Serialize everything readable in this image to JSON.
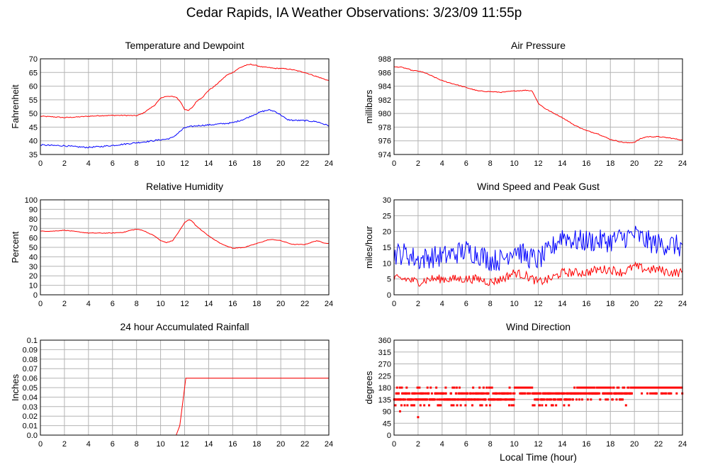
{
  "title": "Cedar Rapids, IA Weather Observations: 3/23/09 11:55p",
  "x_axis_label": "Local Time (hour)",
  "chart_data": [
    {
      "id": "temp",
      "type": "line",
      "title": "Temperature and Dewpoint",
      "xlabel": "",
      "ylabel": "Fahrenheit",
      "xlim": [
        0,
        24
      ],
      "xticks": [
        0,
        2,
        4,
        6,
        8,
        10,
        12,
        14,
        16,
        18,
        20,
        22,
        24
      ],
      "ylim": [
        35,
        70
      ],
      "yticks": [
        35,
        40,
        45,
        50,
        55,
        60,
        65,
        70
      ],
      "grid": true,
      "series": [
        {
          "color": "#ff0000",
          "noise": 0.15,
          "x": [
            0,
            1,
            2,
            3,
            4,
            5,
            6,
            7,
            8,
            8.5,
            9,
            9.5,
            10,
            10.3,
            10.7,
            11,
            11.3,
            11.7,
            12,
            12.3,
            12.7,
            13,
            13.5,
            14,
            14.5,
            15,
            15.5,
            16,
            16.5,
            17,
            17.5,
            18,
            18.5,
            19,
            19.5,
            20,
            20.5,
            21,
            22,
            23,
            24
          ],
          "y": [
            49,
            48.8,
            48.5,
            48.7,
            49,
            49.2,
            49.3,
            49.3,
            49.2,
            50,
            51.5,
            53,
            55.5,
            56.2,
            56.2,
            56.2,
            56,
            54,
            51.5,
            51,
            52.5,
            54.5,
            56,
            58.5,
            60,
            62,
            64,
            65,
            66.5,
            67.5,
            68,
            67.5,
            67,
            66.8,
            66.5,
            66.5,
            66.3,
            66,
            65,
            63.5,
            62
          ]
        },
        {
          "color": "#0000ff",
          "noise": 0.25,
          "x": [
            0,
            1,
            2,
            3,
            4,
            5,
            6,
            7,
            8,
            9,
            10,
            10.5,
            11,
            11.5,
            12,
            12.5,
            13,
            14,
            15,
            16,
            17,
            17.5,
            18,
            18.5,
            19,
            19.5,
            20,
            20.5,
            21,
            22,
            23,
            24
          ],
          "y": [
            38.5,
            38.3,
            38.2,
            37.8,
            37.6,
            37.9,
            38.3,
            38.8,
            39.3,
            39.8,
            40.4,
            40.6,
            41.2,
            43,
            44.8,
            45.2,
            45.5,
            45.8,
            46.2,
            46.6,
            48,
            49,
            50,
            50.8,
            51.3,
            50.8,
            49.5,
            47.8,
            47.5,
            47.4,
            47,
            45.5
          ]
        }
      ]
    },
    {
      "id": "pressure",
      "type": "line",
      "title": "Air Pressure",
      "xlabel": "",
      "ylabel": "millibars",
      "xlim": [
        0,
        24
      ],
      "xticks": [
        0,
        2,
        4,
        6,
        8,
        10,
        12,
        14,
        16,
        18,
        20,
        22,
        24
      ],
      "ylim": [
        974,
        988
      ],
      "yticks": [
        974,
        976,
        978,
        980,
        982,
        984,
        986,
        988
      ],
      "grid": true,
      "series": [
        {
          "color": "#ff0000",
          "noise": 0.06,
          "x": [
            0,
            0.5,
            1,
            1.5,
            2,
            2.5,
            3,
            4,
            5,
            6,
            7,
            8,
            9,
            10,
            11,
            11.5,
            12,
            12.5,
            13,
            14,
            15,
            16,
            17,
            18,
            19,
            19.5,
            20,
            20.5,
            21,
            22,
            23,
            24
          ],
          "y": [
            986.8,
            986.8,
            986.6,
            986.3,
            986.2,
            986,
            985.6,
            984.8,
            984.3,
            983.8,
            983.3,
            983.2,
            983.1,
            983.3,
            983.4,
            983.3,
            981.5,
            980.8,
            980.3,
            979.4,
            978.3,
            977.5,
            977,
            976.2,
            975.8,
            975.7,
            975.8,
            976.3,
            976.6,
            976.6,
            976.4,
            976.1
          ]
        }
      ]
    },
    {
      "id": "humidity",
      "type": "line",
      "title": "Relative Humidity",
      "xlabel": "",
      "ylabel": "Percent",
      "xlim": [
        0,
        24
      ],
      "xticks": [
        0,
        2,
        4,
        6,
        8,
        10,
        12,
        14,
        16,
        18,
        20,
        22,
        24
      ],
      "ylim": [
        0,
        100
      ],
      "yticks": [
        0,
        10,
        20,
        30,
        40,
        50,
        60,
        70,
        80,
        90,
        100
      ],
      "grid": true,
      "series": [
        {
          "color": "#ff0000",
          "noise": 0.3,
          "x": [
            0,
            1,
            2,
            3,
            4,
            5,
            6,
            7,
            7.5,
            8,
            8.5,
            9,
            9.5,
            10,
            10.5,
            11,
            11.5,
            12,
            12.3,
            12.6,
            13,
            13.5,
            14,
            15,
            16,
            17,
            18,
            19,
            19.5,
            20,
            20.5,
            21,
            22,
            22.5,
            23,
            23.5,
            24
          ],
          "y": [
            67,
            67,
            68,
            66.5,
            65,
            65,
            65,
            66,
            68,
            69,
            68,
            65,
            62,
            57,
            55,
            57,
            66,
            76,
            79,
            78,
            72,
            67,
            62,
            54,
            49,
            50,
            54,
            58,
            58,
            57,
            55,
            53,
            53,
            55,
            57,
            55,
            54
          ]
        }
      ]
    },
    {
      "id": "wind",
      "type": "line",
      "title": "Wind Speed and Peak Gust",
      "xlabel": "",
      "ylabel": "miles/hour",
      "xlim": [
        0,
        24
      ],
      "xticks": [
        0,
        2,
        4,
        6,
        8,
        10,
        12,
        14,
        16,
        18,
        20,
        22,
        24
      ],
      "ylim": [
        0,
        30
      ],
      "yticks": [
        0,
        5,
        10,
        15,
        20,
        25,
        30
      ],
      "grid": true,
      "series": [
        {
          "color": "#0000ff",
          "noise": 3.6,
          "x": [
            0,
            1,
            2,
            3,
            4,
            5,
            6,
            7,
            8,
            9,
            10,
            11,
            12,
            13,
            14,
            15,
            16,
            17,
            18,
            19,
            20,
            21,
            22,
            23,
            24
          ],
          "y": [
            13,
            13,
            11,
            12,
            12,
            13,
            14,
            13,
            11,
            11,
            15,
            12,
            11,
            14,
            19,
            17,
            17,
            17,
            17,
            18,
            19,
            17,
            16,
            16,
            15
          ]
        },
        {
          "color": "#ff0000",
          "noise": 1.4,
          "x": [
            0,
            1,
            2,
            3,
            4,
            5,
            6,
            7,
            8,
            9,
            10,
            11,
            12,
            13,
            14,
            15,
            16,
            17,
            18,
            19,
            20,
            21,
            22,
            23,
            24
          ],
          "y": [
            5,
            5,
            4,
            5,
            5,
            5,
            5,
            5,
            4,
            5,
            7,
            6,
            4,
            5,
            7,
            7,
            7,
            8,
            8,
            7,
            9,
            8,
            8,
            7,
            7
          ]
        }
      ]
    },
    {
      "id": "rain",
      "type": "line",
      "title": "24 hour Accumulated Rainfall",
      "xlabel": "",
      "ylabel": "Inches",
      "xlim": [
        0,
        24
      ],
      "xticks": [
        0,
        2,
        4,
        6,
        8,
        10,
        12,
        14,
        16,
        18,
        20,
        22,
        24
      ],
      "ylim": [
        0,
        0.1
      ],
      "yticks": [
        0.0,
        0.01,
        0.02,
        0.03,
        0.04,
        0.05,
        0.06,
        0.07,
        0.08,
        0.09,
        0.1
      ],
      "ytick_labels": [
        "0.0",
        "0.01",
        "0.02",
        "0.03",
        "0.04",
        "0.05",
        "0.06",
        "0.07",
        "0.08",
        "0.09",
        "0.1"
      ],
      "grid": true,
      "series": [
        {
          "color": "#ff0000",
          "noise": 0,
          "x": [
            0,
            11.3,
            11.6,
            11.9,
            12.1,
            24
          ],
          "y": [
            0,
            0,
            0.01,
            0.04,
            0.06,
            0.06
          ]
        }
      ]
    },
    {
      "id": "direction",
      "type": "scatter",
      "title": "Wind Direction",
      "xlabel": "Local Time (hour)",
      "ylabel": "degrees",
      "xlim": [
        0,
        24
      ],
      "xticks": [
        0,
        2,
        4,
        6,
        8,
        10,
        12,
        14,
        16,
        18,
        20,
        22,
        24
      ],
      "ylim": [
        0,
        360
      ],
      "yticks": [
        0,
        45,
        90,
        135,
        180,
        225,
        270,
        315,
        360
      ],
      "grid": true,
      "series": [
        {
          "color": "#ff0000",
          "noise": 0,
          "segments": [
            {
              "from": 0,
              "to": 10.0,
              "values": [
                135,
                158,
                135,
                158,
                135,
                113,
                135,
                158,
                180,
                135,
                158,
                135
              ]
            },
            {
              "from": 10.0,
              "to": 11.5,
              "values": [
                180,
                180,
                180,
                158,
                180
              ]
            },
            {
              "from": 11.5,
              "to": 15.0,
              "values": [
                158,
                135,
                158,
                135,
                113,
                158,
                135,
                158
              ]
            },
            {
              "from": 15.0,
              "to": 19.8,
              "values": [
                158,
                180,
                158,
                180,
                158,
                135,
                180,
                158
              ]
            },
            {
              "from": 19.8,
              "to": 24.0,
              "values": [
                180,
                180,
                158,
                180,
                180,
                180
              ]
            }
          ],
          "outliers": [
            [
              0.5,
              90
            ],
            [
              2.0,
              68
            ],
            [
              2.2,
              113
            ],
            [
              19.3,
              113
            ],
            [
              0.5,
              180
            ],
            [
              4.3,
              180
            ]
          ]
        }
      ]
    }
  ]
}
